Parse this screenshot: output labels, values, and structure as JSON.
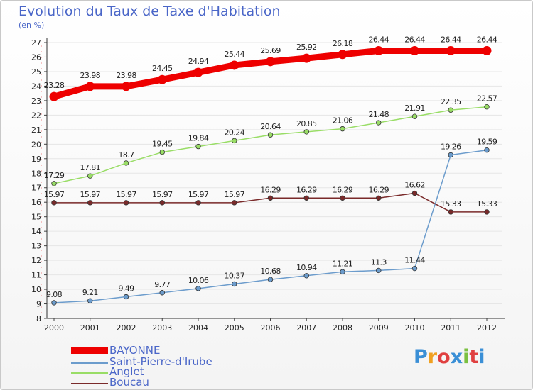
{
  "header": {
    "title": "Evolution du Taux de Taxe d'Habitation",
    "unit": "(en %)"
  },
  "logo": {
    "text": "Proxiti"
  },
  "chart_data": {
    "type": "line",
    "x": [
      "2000",
      "2001",
      "2002",
      "2003",
      "2004",
      "2005",
      "2006",
      "2007",
      "2008",
      "2009",
      "2010",
      "2011",
      "2012"
    ],
    "ylim": [
      8,
      27
    ],
    "yticks": [
      8,
      9,
      10,
      11,
      12,
      13,
      14,
      15,
      16,
      17,
      18,
      19,
      20,
      21,
      22,
      23,
      24,
      25,
      26,
      27
    ],
    "grid": true,
    "legend_position": "bottom-left",
    "series": [
      {
        "name": "BAYONNE",
        "color": "#ee0000",
        "values": [
          23.28,
          23.98,
          23.98,
          24.45,
          24.94,
          25.44,
          25.69,
          25.92,
          26.18,
          26.44,
          26.44,
          26.44,
          26.44
        ],
        "labels": [
          "23.28",
          "23.98",
          "23.98",
          "24.45",
          "24.94",
          "25.44",
          "25.69",
          "25.92",
          "26.18",
          "26.44",
          "26.44",
          "26.44",
          "26.44"
        ]
      },
      {
        "name": "Saint-Pierre-d'Irube",
        "color": "#6c9ccc",
        "values": [
          9.08,
          9.21,
          9.49,
          9.77,
          10.06,
          10.37,
          10.68,
          10.94,
          11.21,
          11.3,
          11.44,
          19.26,
          19.59
        ],
        "labels": [
          "9.08",
          "9.21",
          "9.49",
          "9.77",
          "10.06",
          "10.37",
          "10.68",
          "10.94",
          "11.21",
          "11.3",
          "11.44",
          "19.26",
          "19.59"
        ]
      },
      {
        "name": "Anglet",
        "color": "#99dd66",
        "values": [
          17.29,
          17.81,
          18.7,
          19.45,
          19.84,
          20.24,
          20.64,
          20.85,
          21.06,
          21.48,
          21.91,
          22.35,
          22.57
        ],
        "labels": [
          "17.29",
          "17.81",
          "18.7",
          "19.45",
          "19.84",
          "20.24",
          "20.64",
          "20.85",
          "21.06",
          "21.48",
          "21.91",
          "22.35",
          "22.57"
        ]
      },
      {
        "name": "Boucau",
        "color": "#7a2a2a",
        "values": [
          15.97,
          15.97,
          15.97,
          15.97,
          15.97,
          15.97,
          16.29,
          16.29,
          16.29,
          16.29,
          16.62,
          15.33,
          15.33
        ],
        "labels": [
          "15.97",
          "15.97",
          "15.97",
          "15.97",
          "15.97",
          "15.97",
          "16.29",
          "16.29",
          "16.29",
          "16.29",
          "16.62",
          "15.33",
          "15.33"
        ]
      }
    ]
  }
}
